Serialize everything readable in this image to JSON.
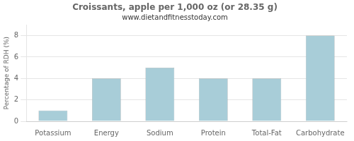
{
  "chart_data": {
    "type": "bar",
    "title": "Croissants, apple per 1,000 oz (or 28.35 g)",
    "subtitle": "www.dietandfitnesstoday.com",
    "ylabel": "Percentage of RDH (%)",
    "categories": [
      "Potassium",
      "Energy",
      "Sodium",
      "Protein",
      "Total-Fat",
      "Carbohydrate"
    ],
    "values": [
      1.0,
      4.0,
      5.0,
      4.0,
      4.0,
      8.0
    ],
    "color": "#a8cdd8",
    "ylim": [
      0,
      9
    ],
    "yticks": [
      0,
      2,
      4,
      6,
      8
    ],
    "grid": true
  }
}
